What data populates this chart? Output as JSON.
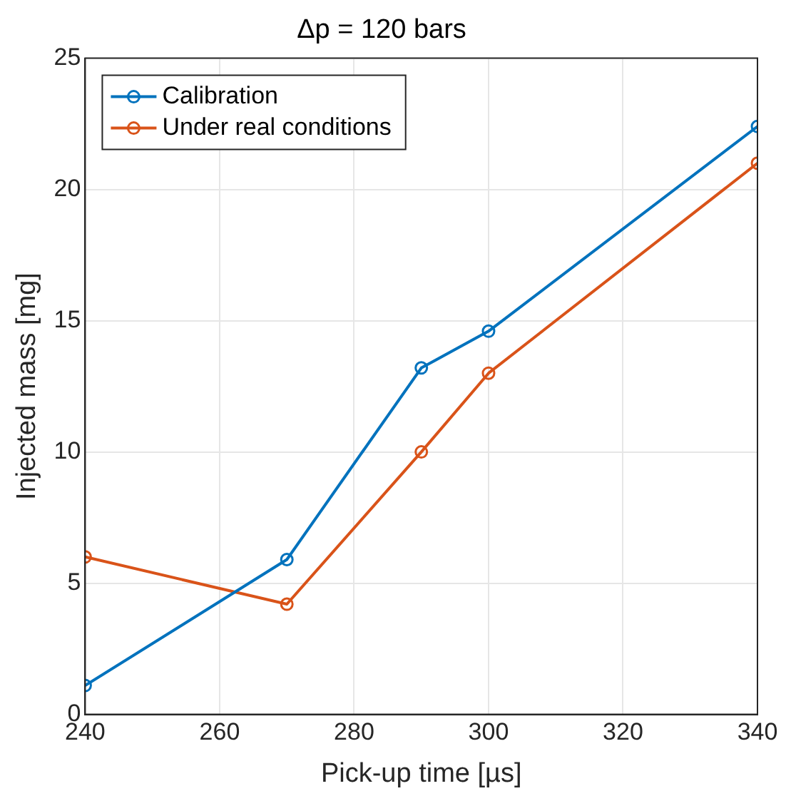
{
  "chart_data": {
    "type": "line",
    "title": "Δp = 120 bars",
    "xlabel": "Pick-up time [µs]",
    "ylabel": "Injected mass [mg]",
    "x": [
      240,
      270,
      290,
      300,
      340
    ],
    "series": [
      {
        "name": "Calibration",
        "color": "#0072bd",
        "values": [
          1.1,
          5.9,
          13.2,
          14.6,
          22.4
        ]
      },
      {
        "name": "Under real conditions",
        "color": "#d95319",
        "values": [
          6,
          4.2,
          10,
          13,
          21
        ]
      }
    ],
    "xlim": [
      240,
      340
    ],
    "xticks": [
      240,
      260,
      280,
      300,
      320,
      340
    ],
    "ylim": [
      0,
      25
    ],
    "yticks": [
      0,
      5,
      10,
      15,
      20,
      25
    ],
    "grid": true,
    "legend": "top left",
    "marker": "circle",
    "line_style": "solid"
  }
}
